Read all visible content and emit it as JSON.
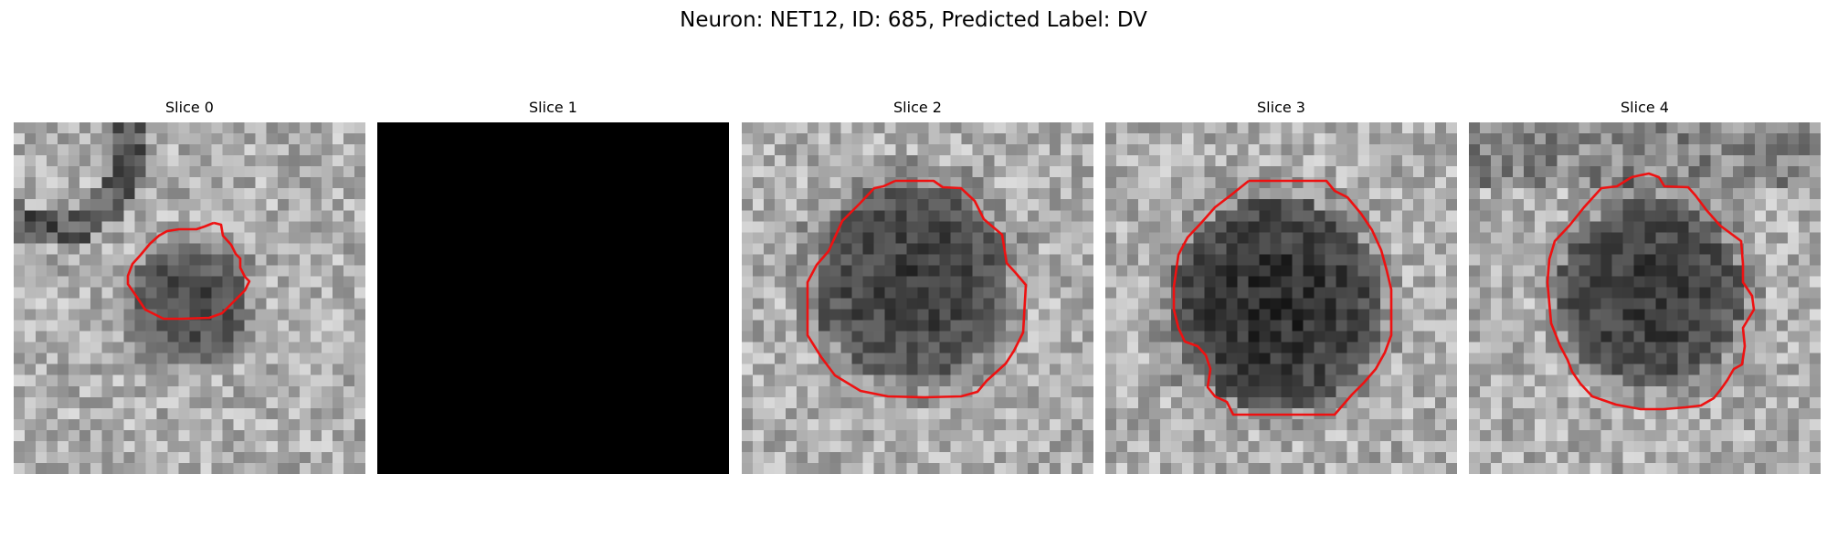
{
  "figure": {
    "title": "Neuron: NET12, ID: 685, Predicted Label: DV"
  },
  "colors": {
    "contour": "#ee1111",
    "background": "#ffffff"
  },
  "panels": [
    {
      "title": "Slice 0",
      "blank": false
    },
    {
      "title": "Slice 1",
      "blank": true
    },
    {
      "title": "Slice 2",
      "blank": false
    },
    {
      "title": "Slice 3",
      "blank": false
    },
    {
      "title": "Slice 4",
      "blank": false
    }
  ]
}
